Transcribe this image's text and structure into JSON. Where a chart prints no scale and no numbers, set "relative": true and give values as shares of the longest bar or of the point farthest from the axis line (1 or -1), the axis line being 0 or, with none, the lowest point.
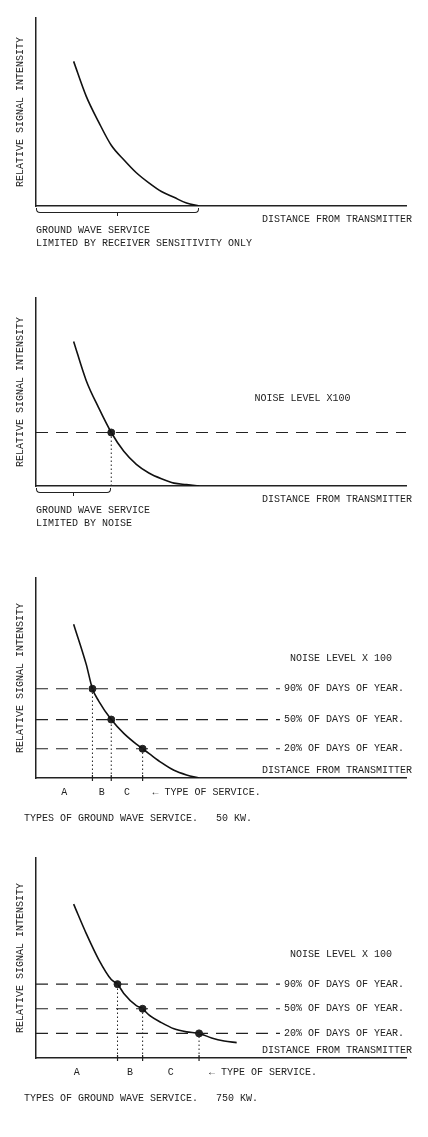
{
  "chart_data": [
    {
      "type": "line",
      "relative": true,
      "marker": "none",
      "ylabel": "RELATIVE SIGNAL INTENSITY",
      "xlabel": "DISTANCE FROM TRANSMITTER",
      "categories": [
        null,
        null,
        null,
        null,
        null,
        null,
        null,
        null,
        null,
        null,
        null,
        null,
        null,
        null,
        null,
        null,
        null,
        null,
        null,
        null,
        null,
        null,
        null,
        null,
        null,
        null,
        null,
        null,
        null,
        null,
        null,
        null,
        null,
        null,
        null,
        null,
        null,
        null,
        null,
        null,
        null,
        null,
        null,
        null,
        null,
        null,
        null,
        null,
        null,
        null,
        null,
        null,
        null,
        null,
        null,
        null,
        null,
        null,
        null,
        null
      ],
      "series": [
        {
          "color": "#111111",
          "values": [
            null,
            null,
            null,
            null,
            null,
            null,
            1,
            null,
            0.76,
            null,
            0.58,
            null,
            0.42,
            null,
            0.32,
            null,
            0.23,
            null,
            0.16,
            null,
            0.1,
            null,
            0.06,
            null,
            0.02,
            null,
            0,
            null,
            null,
            null,
            null,
            null,
            null,
            null,
            null,
            null,
            null,
            null,
            null,
            null,
            null,
            null,
            null,
            null,
            null,
            null,
            null,
            null,
            null,
            null,
            null,
            null,
            null,
            null,
            null,
            null,
            null,
            null,
            null,
            null
          ]
        }
      ],
      "annotations": [
        "GROUND WAVE SERVICE\nLIMITED BY RECEIVER SENSITIVITY ONLY"
      ]
    },
    {
      "type": "line",
      "relative": true,
      "marker": "none",
      "ylabel": "RELATIVE SIGNAL INTENSITY",
      "xlabel": "DISTANCE FROM TRANSMITTER",
      "categories": [
        null,
        null,
        null,
        null,
        null,
        null,
        null,
        null,
        null,
        null,
        null,
        null,
        null,
        null,
        null,
        null,
        null,
        null,
        null,
        null,
        null,
        null,
        null,
        null,
        null,
        null,
        null,
        null,
        null,
        null,
        null,
        null,
        null,
        null,
        null,
        null,
        null,
        null,
        null,
        null,
        null,
        null,
        null,
        null,
        null,
        null,
        null,
        null,
        null,
        null,
        null,
        null,
        null,
        null,
        null,
        null,
        null,
        null,
        null,
        null
      ],
      "series": [
        {
          "color": "#111111",
          "values": [
            null,
            null,
            null,
            null,
            null,
            null,
            1,
            null,
            0.73,
            null,
            0.54,
            null,
            0.37,
            null,
            0.24,
            null,
            0.15,
            null,
            0.09,
            null,
            0.05,
            null,
            0.02,
            null,
            0.01,
            null,
            0,
            null,
            null,
            null,
            null,
            null,
            null,
            null,
            null,
            null,
            null,
            null,
            null,
            null,
            null,
            null,
            null,
            null,
            null,
            null,
            null,
            null,
            null,
            null,
            null,
            null,
            null,
            null,
            null,
            null,
            null,
            null,
            null,
            null
          ]
        },
        {
          "type": "lollipop",
          "color": "#222222",
          "line_style": "dotted",
          "marker": "circle",
          "values": [
            null,
            null,
            null,
            null,
            null,
            null,
            null,
            null,
            null,
            null,
            null,
            null,
            0.37,
            null,
            null,
            null,
            null,
            null,
            null,
            null,
            null,
            null,
            null,
            null,
            null,
            null,
            null,
            null,
            null,
            null,
            null,
            null,
            null,
            null,
            null,
            null,
            null,
            null,
            null,
            null,
            null,
            null,
            null,
            null,
            null,
            null,
            null,
            null,
            null,
            null,
            null,
            null,
            null,
            null,
            null,
            null,
            null,
            null,
            null,
            null
          ]
        }
      ],
      "ref_lines": [
        {
          "axis": "y",
          "value": 0.37,
          "label": "NOISE LEVEL X100",
          "line_style": "dashed"
        }
      ],
      "annotations": [
        "GROUND WAVE SERVICE\nLIMITED BY NOISE"
      ]
    },
    {
      "type": "line",
      "relative": true,
      "marker": "none",
      "ylabel": "RELATIVE SIGNAL INTENSITY",
      "xlabel": "DISTANCE FROM TRANSMITTER",
      "subtitle": "NOISE LEVEL X 100",
      "title": "TYPES OF GROUND WAVE SERVICE.   50 KW.",
      "categories": [
        null,
        null,
        null,
        null,
        null,
        null,
        null,
        null,
        null,
        null,
        null,
        null,
        null,
        null,
        null,
        null,
        null,
        null,
        null,
        null,
        null,
        null,
        null,
        null,
        null,
        null,
        null,
        null,
        null,
        null,
        null,
        null,
        null,
        null,
        null,
        null,
        null,
        null,
        null,
        null,
        null,
        null,
        null,
        null,
        null,
        null,
        null,
        null,
        null,
        null,
        null,
        null,
        null,
        null,
        null,
        null,
        null,
        null,
        null,
        null
      ],
      "series": [
        {
          "color": "#111111",
          "values": [
            null,
            null,
            null,
            null,
            null,
            null,
            1,
            null,
            0.74,
            0.58,
            0.5,
            null,
            0.38,
            null,
            0.29,
            null,
            0.22,
            0.19,
            0.16,
            null,
            0.1,
            null,
            0.05,
            null,
            0.02,
            null,
            0,
            null,
            null,
            null,
            null,
            null,
            null,
            null,
            null,
            null,
            null,
            null,
            null,
            null,
            null,
            null,
            null,
            null,
            null,
            null,
            null,
            null,
            null,
            null,
            null,
            null,
            null,
            null,
            null,
            null,
            null,
            null,
            null,
            null
          ]
        },
        {
          "type": "lollipop",
          "color": "#222222",
          "line_style": "dotted",
          "marker": "circle",
          "values": [
            null,
            null,
            null,
            null,
            null,
            null,
            null,
            null,
            null,
            0.58,
            null,
            null,
            0.38,
            null,
            null,
            null,
            null,
            0.19,
            null,
            null,
            null,
            null,
            null,
            null,
            null,
            null,
            null,
            null,
            null,
            null,
            null,
            null,
            null,
            null,
            null,
            null,
            null,
            null,
            null,
            null,
            null,
            null,
            null,
            null,
            null,
            null,
            null,
            null,
            null,
            null,
            null,
            null,
            null,
            null,
            null,
            null,
            null,
            null,
            null,
            null
          ]
        }
      ],
      "ref_lines": [
        {
          "axis": "y",
          "value": 0.58,
          "label": "90% OF DAYS OF YEAR.",
          "line_style": "dashed"
        },
        {
          "axis": "y",
          "value": 0.38,
          "label": "50% OF DAYS OF YEAR.",
          "line_style": "dashed"
        },
        {
          "axis": "y",
          "value": 0.19,
          "label": "20% OF DAYS OF YEAR.",
          "line_style": "dashed"
        }
      ],
      "annotations": [
        "A",
        "B",
        "C",
        "← TYPE OF SERVICE."
      ]
    },
    {
      "type": "line",
      "relative": true,
      "marker": "none",
      "ylabel": "RELATIVE SIGNAL INTENSITY",
      "xlabel": "DISTANCE FROM TRANSMITTER",
      "subtitle": "NOISE LEVEL X 100",
      "title": "TYPES OF GROUND WAVE SERVICE.   750 KW.",
      "categories": [
        null,
        null,
        null,
        null,
        null,
        null,
        null,
        null,
        null,
        null,
        null,
        null,
        null,
        null,
        null,
        null,
        null,
        null,
        null,
        null,
        null,
        null,
        null,
        null,
        null,
        null,
        null,
        null,
        null,
        null,
        null,
        null,
        null,
        null,
        null,
        null,
        null,
        null,
        null,
        null,
        null,
        null,
        null,
        null,
        null,
        null,
        null,
        null,
        null,
        null,
        null,
        null,
        null,
        null,
        null,
        null,
        null,
        null,
        null,
        null
      ],
      "series": [
        {
          "color": "#111111",
          "values": [
            null,
            null,
            null,
            null,
            null,
            null,
            1,
            null,
            0.81,
            null,
            0.64,
            null,
            0.51,
            0.48,
            0.42,
            null,
            0.34,
            0.32,
            0.28,
            null,
            0.23,
            null,
            0.19,
            null,
            0.17,
            null,
            0.16,
            null,
            0.13,
            null,
            0.11,
            null,
            0.1,
            null,
            null,
            null,
            null,
            null,
            null,
            null,
            null,
            null,
            null,
            null,
            null,
            null,
            null,
            null,
            null,
            null,
            null,
            null,
            null,
            null,
            null,
            null,
            null,
            null,
            null,
            null
          ]
        },
        {
          "type": "lollipop",
          "color": "#222222",
          "line_style": "dotted",
          "marker": "circle",
          "values": [
            null,
            null,
            null,
            null,
            null,
            null,
            null,
            null,
            null,
            null,
            null,
            null,
            null,
            0.48,
            null,
            null,
            null,
            0.32,
            null,
            null,
            null,
            null,
            null,
            null,
            null,
            null,
            0.16,
            null,
            null,
            null,
            null,
            null,
            null,
            null,
            null,
            null,
            null,
            null,
            null,
            null,
            null,
            null,
            null,
            null,
            null,
            null,
            null,
            null,
            null,
            null,
            null,
            null,
            null,
            null,
            null,
            null,
            null,
            null,
            null,
            null
          ]
        }
      ],
      "ref_lines": [
        {
          "axis": "y",
          "value": 0.48,
          "label": "90% OF DAYS OF YEAR.",
          "line_style": "dashed"
        },
        {
          "axis": "y",
          "value": 0.32,
          "label": "50% OF DAYS OF YEAR.",
          "line_style": "dashed"
        },
        {
          "axis": "y",
          "value": 0.16,
          "label": "20% OF DAYS OF YEAR.",
          "line_style": "dashed"
        }
      ],
      "annotations": [
        "A",
        "B",
        "C",
        "← TYPE OF SERVICE."
      ]
    }
  ]
}
